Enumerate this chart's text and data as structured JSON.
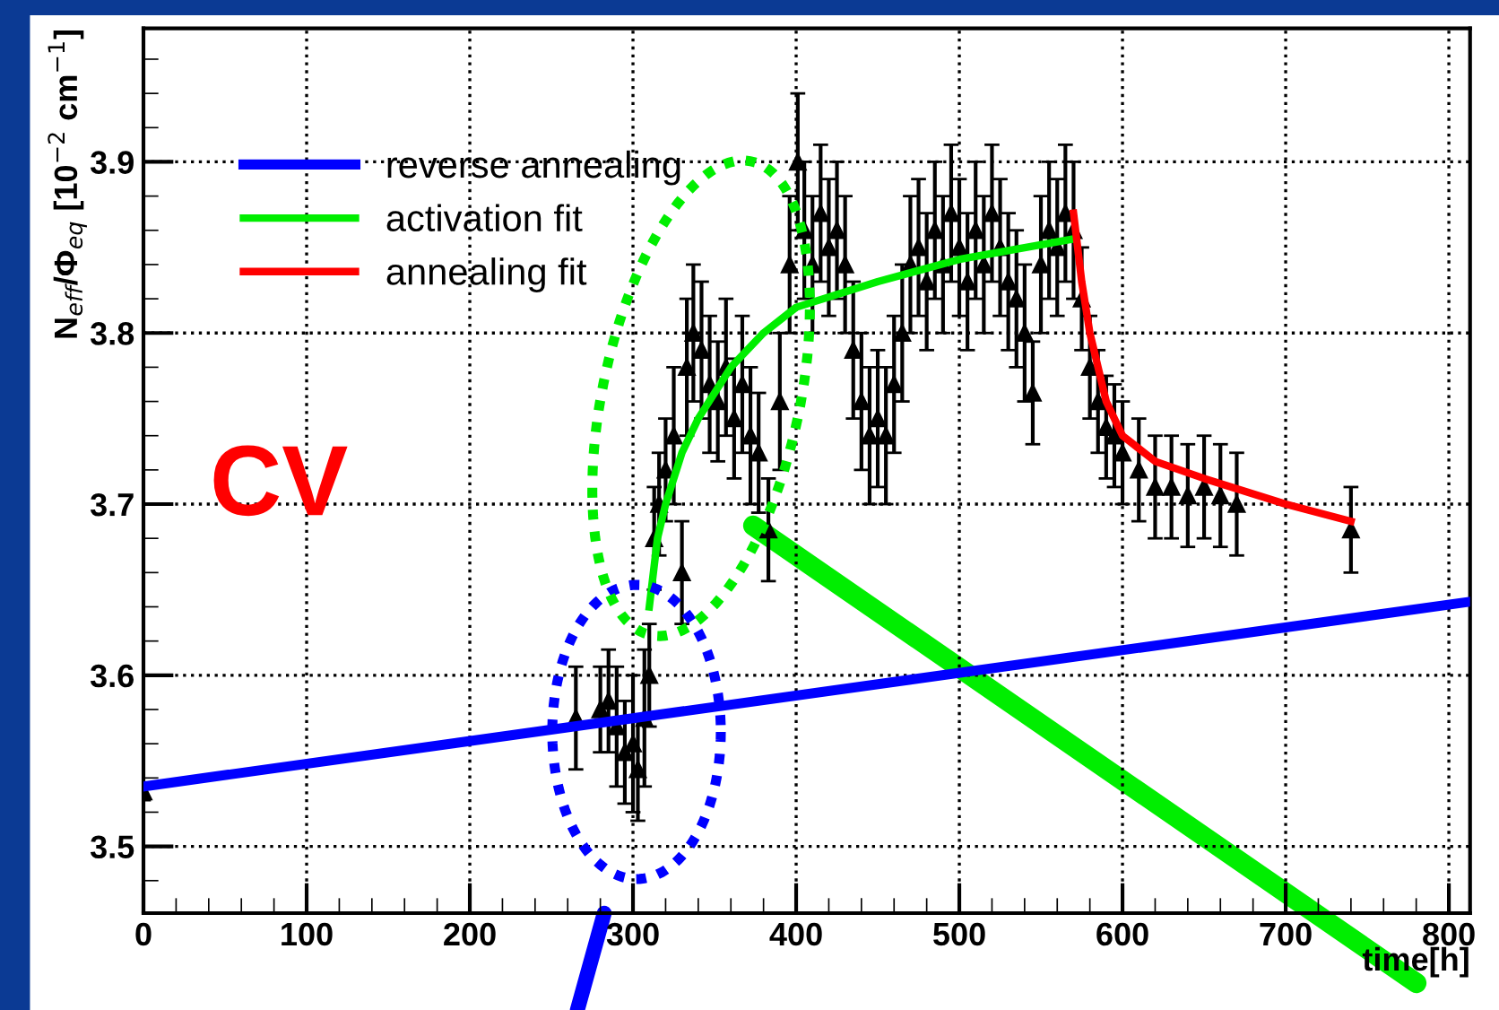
{
  "chart_data": {
    "type": "scatter",
    "xlabel": "time[h]",
    "ylabel": "N$_{eff}$/Φ$_{eq}$ [10$^{−2}$ cm$^{−1}$]",
    "annotations": [
      "CV"
    ],
    "xlim": [
      0,
      813
    ],
    "ylim": [
      3.461,
      3.978
    ],
    "xticks": [
      0,
      100,
      200,
      300,
      400,
      500,
      600,
      700,
      800
    ],
    "yticks": [
      3.5,
      3.6,
      3.7,
      3.8,
      3.9
    ],
    "grid": true,
    "legend": "top left",
    "series": [
      {
        "color": "#000000",
        "marker": "triangle",
        "x": [
          0,
          265,
          280,
          285,
          290,
          295,
          300,
          303,
          307,
          310,
          313,
          316,
          320,
          325,
          330,
          333,
          337,
          342,
          347,
          352,
          357,
          362,
          367,
          372,
          377,
          383,
          390,
          396,
          401,
          405,
          410,
          415,
          420,
          425,
          430,
          435,
          440,
          445,
          450,
          455,
          460,
          465,
          470,
          475,
          480,
          485,
          490,
          495,
          500,
          505,
          510,
          515,
          520,
          525,
          530,
          535,
          540,
          545,
          550,
          555,
          560,
          565,
          570,
          575,
          580,
          585,
          590,
          595,
          600,
          610,
          620,
          630,
          640,
          650,
          660,
          670,
          740
        ],
        "values": [
          3.532,
          3.575,
          3.58,
          3.585,
          3.57,
          3.555,
          3.56,
          3.545,
          3.575,
          3.6,
          3.68,
          3.7,
          3.72,
          3.74,
          3.66,
          3.78,
          3.8,
          3.79,
          3.77,
          3.76,
          3.78,
          3.75,
          3.77,
          3.74,
          3.73,
          3.685,
          3.76,
          3.84,
          3.9,
          3.86,
          3.84,
          3.87,
          3.85,
          3.86,
          3.84,
          3.79,
          3.76,
          3.74,
          3.75,
          3.74,
          3.77,
          3.8,
          3.84,
          3.85,
          3.83,
          3.86,
          3.84,
          3.87,
          3.85,
          3.83,
          3.86,
          3.84,
          3.87,
          3.85,
          3.83,
          3.82,
          3.8,
          3.765,
          3.84,
          3.86,
          3.85,
          3.87,
          3.86,
          3.82,
          3.78,
          3.76,
          3.745,
          3.74,
          3.73,
          3.72,
          3.71,
          3.71,
          3.705,
          3.71,
          3.705,
          3.7,
          3.685
        ],
        "errors": [
          0.005,
          0.03,
          0.025,
          0.03,
          0.035,
          0.03,
          0.04,
          0.03,
          0.04,
          0.03,
          0.03,
          0.03,
          0.03,
          0.04,
          0.03,
          0.04,
          0.04,
          0.04,
          0.04,
          0.035,
          0.04,
          0.035,
          0.04,
          0.04,
          0.035,
          0.03,
          0.04,
          0.04,
          0.04,
          0.04,
          0.04,
          0.04,
          0.04,
          0.04,
          0.04,
          0.04,
          0.04,
          0.04,
          0.04,
          0.04,
          0.04,
          0.04,
          0.04,
          0.04,
          0.04,
          0.04,
          0.04,
          0.04,
          0.04,
          0.04,
          0.04,
          0.04,
          0.04,
          0.04,
          0.04,
          0.04,
          0.04,
          0.03,
          0.04,
          0.04,
          0.04,
          0.04,
          0.04,
          0.03,
          0.03,
          0.03,
          0.03,
          0.03,
          0.03,
          0.03,
          0.03,
          0.03,
          0.03,
          0.03,
          0.03,
          0.03,
          0.025
        ]
      },
      {
        "type": "line",
        "name": "reverse annealing",
        "color": "#0000ff",
        "x": [
          0,
          813
        ],
        "values": [
          3.535,
          3.643
        ]
      },
      {
        "type": "line",
        "name": "activation fit",
        "color": "#00ee00",
        "x": [
          310,
          315,
          320,
          330,
          340,
          360,
          380,
          400,
          450,
          500,
          570
        ],
        "values": [
          3.64,
          3.68,
          3.7,
          3.73,
          3.75,
          3.78,
          3.8,
          3.815,
          3.83,
          3.843,
          3.855
        ]
      },
      {
        "type": "line",
        "name": "annealing fit",
        "color": "#ff0000",
        "x": [
          570,
          575,
          580,
          590,
          600,
          620,
          650,
          700,
          740
        ],
        "values": [
          3.87,
          3.83,
          3.8,
          3.76,
          3.74,
          3.725,
          3.715,
          3.7,
          3.69
        ]
      }
    ]
  }
}
